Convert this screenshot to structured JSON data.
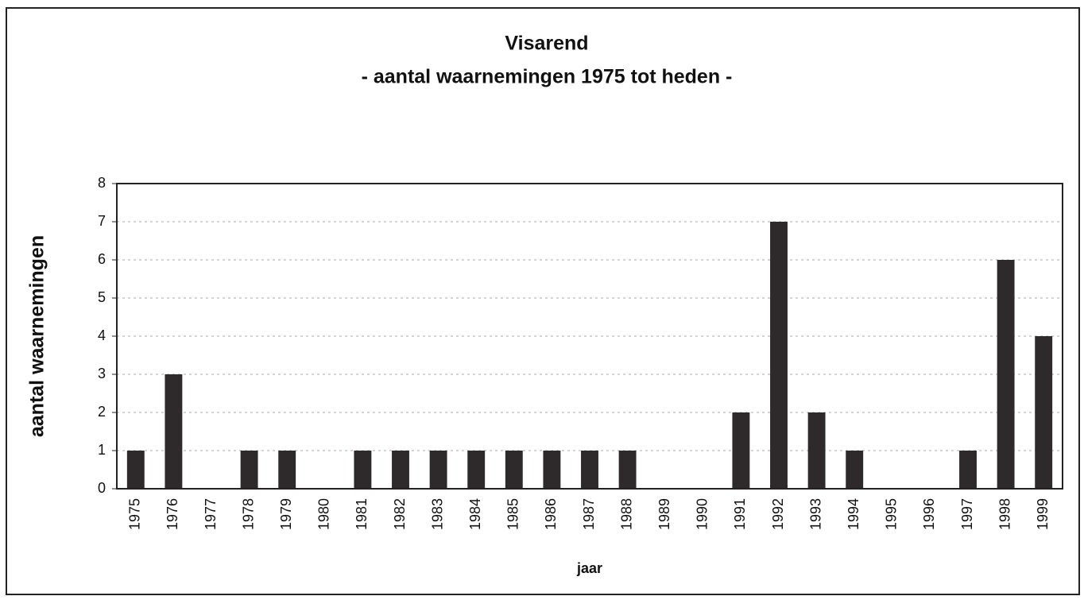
{
  "chart_data": {
    "type": "bar",
    "title": "Visarend",
    "subtitle": "- aantal waarnemingen 1975 tot heden -",
    "x_label": "jaar",
    "y_label": "aantal waarnemingen",
    "categories": [
      "1975",
      "1976",
      "1977",
      "1978",
      "1979",
      "1980",
      "1981",
      "1982",
      "1983",
      "1984",
      "1985",
      "1986",
      "1987",
      "1988",
      "1989",
      "1990",
      "1991",
      "1992",
      "1993",
      "1994",
      "1995",
      "1996",
      "1997",
      "1998",
      "1999"
    ],
    "values": [
      1,
      3,
      0,
      1,
      1,
      0,
      1,
      1,
      1,
      1,
      1,
      1,
      1,
      1,
      0,
      0,
      2,
      7,
      2,
      1,
      0,
      0,
      1,
      6,
      4
    ],
    "color": "#2e2a2c",
    "ylim": [
      0,
      8
    ],
    "yticks": [
      0,
      1,
      2,
      3,
      4,
      5,
      6,
      7,
      8
    ],
    "grid": true
  }
}
